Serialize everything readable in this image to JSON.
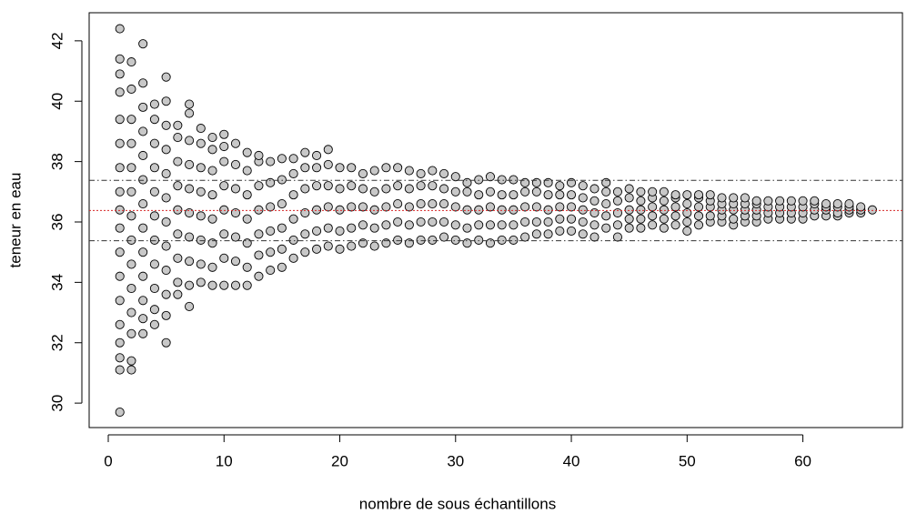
{
  "chart_data": {
    "type": "scatter",
    "x_label": "nombre de sous échantillons",
    "y_label": "teneur en eau",
    "xlim": [
      -1.65,
      68.6
    ],
    "ylim": [
      29.19,
      42.93
    ],
    "xticks": [
      0,
      10,
      20,
      30,
      40,
      50,
      60
    ],
    "yticks": [
      30,
      32,
      34,
      36,
      38,
      40,
      42
    ],
    "grid": false,
    "point_color": "#c8c8c8",
    "reference_lines": [
      {
        "value": 36.38,
        "color": "#d62728",
        "style": "dotted"
      },
      {
        "value": 37.38,
        "color": "#333333",
        "style": "dashdot"
      },
      {
        "value": 35.38,
        "color": "#333333",
        "style": "dashdot"
      }
    ],
    "groups": [
      {
        "x": 1,
        "values": [
          29.7,
          31.1,
          31.5,
          32.0,
          32.6,
          33.4,
          34.2,
          35.0,
          35.8,
          36.4,
          37.0,
          37.8,
          38.6,
          39.4,
          40.3,
          40.9,
          41.4,
          42.4
        ]
      },
      {
        "x": 2,
        "values": [
          31.1,
          31.4,
          32.3,
          33.0,
          33.8,
          34.6,
          35.4,
          36.2,
          37.0,
          37.8,
          38.6,
          39.4,
          40.4,
          41.3
        ]
      },
      {
        "x": 3,
        "values": [
          32.3,
          32.8,
          33.4,
          34.2,
          35.0,
          35.8,
          36.6,
          37.4,
          38.2,
          39.0,
          39.8,
          40.6,
          41.9
        ]
      },
      {
        "x": 4,
        "values": [
          32.6,
          33.1,
          33.8,
          34.6,
          35.4,
          36.2,
          37.0,
          37.8,
          38.6,
          39.4,
          39.9
        ]
      },
      {
        "x": 5,
        "values": [
          32.0,
          32.9,
          33.6,
          34.4,
          35.2,
          36.0,
          36.8,
          37.6,
          38.4,
          39.2,
          40.0,
          40.8
        ]
      },
      {
        "x": 6,
        "values": [
          33.6,
          34.0,
          34.8,
          35.6,
          36.4,
          37.2,
          38.0,
          38.8,
          39.2
        ]
      },
      {
        "x": 7,
        "values": [
          33.2,
          33.9,
          34.7,
          35.5,
          36.3,
          37.1,
          37.9,
          38.7,
          39.6,
          39.9
        ]
      },
      {
        "x": 8,
        "values": [
          34.0,
          34.6,
          35.4,
          36.2,
          37.0,
          37.8,
          38.6,
          39.1
        ]
      },
      {
        "x": 9,
        "values": [
          33.9,
          34.5,
          35.3,
          36.1,
          36.9,
          37.7,
          38.4,
          38.8
        ]
      },
      {
        "x": 10,
        "values": [
          33.9,
          34.8,
          35.6,
          36.4,
          37.2,
          38.0,
          38.5,
          38.9
        ]
      },
      {
        "x": 11,
        "values": [
          33.9,
          34.7,
          35.5,
          36.3,
          37.1,
          37.9,
          38.6
        ]
      },
      {
        "x": 12,
        "values": [
          33.9,
          34.5,
          35.3,
          36.1,
          36.9,
          37.7,
          38.3
        ]
      },
      {
        "x": 13,
        "values": [
          34.2,
          34.9,
          35.6,
          36.4,
          37.2,
          38.0,
          38.2
        ]
      },
      {
        "x": 14,
        "values": [
          34.4,
          35.0,
          35.7,
          36.5,
          37.3,
          38.0
        ]
      },
      {
        "x": 15,
        "values": [
          34.5,
          35.1,
          35.8,
          36.6,
          37.4,
          38.1
        ]
      },
      {
        "x": 16,
        "values": [
          34.8,
          35.4,
          36.1,
          36.9,
          37.6,
          38.1
        ]
      },
      {
        "x": 17,
        "values": [
          35.0,
          35.6,
          36.3,
          37.1,
          37.8,
          38.3
        ]
      },
      {
        "x": 18,
        "values": [
          35.1,
          35.7,
          36.4,
          37.2,
          37.8,
          38.2
        ]
      },
      {
        "x": 19,
        "values": [
          35.2,
          35.8,
          36.5,
          37.2,
          37.9,
          38.4
        ]
      },
      {
        "x": 20,
        "values": [
          35.1,
          35.7,
          36.4,
          37.1,
          37.8
        ]
      },
      {
        "x": 21,
        "values": [
          35.2,
          35.8,
          36.5,
          37.2,
          37.8
        ]
      },
      {
        "x": 22,
        "values": [
          35.3,
          35.9,
          36.5,
          37.1,
          37.6
        ]
      },
      {
        "x": 23,
        "values": [
          35.2,
          35.8,
          36.4,
          37.0,
          37.7
        ]
      },
      {
        "x": 24,
        "values": [
          35.3,
          35.9,
          36.5,
          37.1,
          37.8
        ]
      },
      {
        "x": 25,
        "values": [
          35.4,
          36.0,
          36.6,
          37.2,
          37.8
        ]
      },
      {
        "x": 26,
        "values": [
          35.3,
          35.9,
          36.5,
          37.1,
          37.7
        ]
      },
      {
        "x": 27,
        "values": [
          35.4,
          36.0,
          36.6,
          37.2,
          37.6
        ]
      },
      {
        "x": 28,
        "values": [
          35.4,
          36.0,
          36.6,
          37.2,
          37.7
        ]
      },
      {
        "x": 29,
        "values": [
          35.5,
          36.0,
          36.6,
          37.1,
          37.6
        ]
      },
      {
        "x": 30,
        "values": [
          35.4,
          35.9,
          36.5,
          37.0,
          37.5
        ]
      },
      {
        "x": 31,
        "values": [
          35.3,
          35.8,
          36.4,
          37.0,
          37.3
        ]
      },
      {
        "x": 32,
        "values": [
          35.4,
          35.9,
          36.4,
          36.9,
          37.4
        ]
      },
      {
        "x": 33,
        "values": [
          35.3,
          35.9,
          36.5,
          37.0,
          37.5
        ]
      },
      {
        "x": 34,
        "values": [
          35.4,
          35.9,
          36.4,
          36.9,
          37.4
        ]
      },
      {
        "x": 35,
        "values": [
          35.4,
          35.9,
          36.4,
          36.9,
          37.4
        ]
      },
      {
        "x": 36,
        "values": [
          35.5,
          36.0,
          36.5,
          37.0,
          37.3
        ]
      },
      {
        "x": 37,
        "values": [
          35.6,
          36.0,
          36.5,
          37.0,
          37.3
        ]
      },
      {
        "x": 38,
        "values": [
          35.6,
          36.0,
          36.4,
          36.9,
          37.3
        ]
      },
      {
        "x": 39,
        "values": [
          35.7,
          36.1,
          36.5,
          36.9,
          37.2
        ]
      },
      {
        "x": 40,
        "values": [
          35.7,
          36.1,
          36.5,
          36.9,
          37.3
        ]
      },
      {
        "x": 41,
        "values": [
          35.6,
          36.0,
          36.4,
          36.8,
          37.2
        ]
      },
      {
        "x": 42,
        "values": [
          35.5,
          35.9,
          36.3,
          36.7,
          37.1
        ]
      },
      {
        "x": 43,
        "values": [
          35.8,
          36.2,
          36.6,
          37.0,
          37.3
        ]
      },
      {
        "x": 44,
        "values": [
          35.5,
          35.9,
          36.3,
          36.7,
          37.0
        ]
      },
      {
        "x": 45,
        "values": [
          35.8,
          36.1,
          36.4,
          36.8,
          37.1
        ]
      },
      {
        "x": 46,
        "values": [
          35.8,
          36.1,
          36.4,
          36.7,
          37.0
        ]
      },
      {
        "x": 47,
        "values": [
          35.9,
          36.2,
          36.5,
          36.8,
          37.0
        ]
      },
      {
        "x": 48,
        "values": [
          35.8,
          36.1,
          36.4,
          36.7,
          37.0
        ]
      },
      {
        "x": 49,
        "values": [
          35.9,
          36.2,
          36.5,
          36.8,
          36.9
        ]
      },
      {
        "x": 50,
        "values": [
          35.7,
          36.0,
          36.3,
          36.6,
          36.9
        ]
      },
      {
        "x": 51,
        "values": [
          35.9,
          36.2,
          36.5,
          36.8,
          36.9
        ]
      },
      {
        "x": 52,
        "values": [
          36.0,
          36.2,
          36.5,
          36.7,
          36.9
        ]
      },
      {
        "x": 53,
        "values": [
          36.0,
          36.2,
          36.4,
          36.6,
          36.8
        ]
      },
      {
        "x": 54,
        "values": [
          35.9,
          36.1,
          36.4,
          36.6,
          36.8
        ]
      },
      {
        "x": 55,
        "values": [
          36.0,
          36.2,
          36.4,
          36.6,
          36.8
        ]
      },
      {
        "x": 56,
        "values": [
          36.0,
          36.2,
          36.4,
          36.6,
          36.7
        ]
      },
      {
        "x": 57,
        "values": [
          36.1,
          36.3,
          36.5,
          36.7
        ]
      },
      {
        "x": 58,
        "values": [
          36.1,
          36.3,
          36.5,
          36.7
        ]
      },
      {
        "x": 59,
        "values": [
          36.1,
          36.3,
          36.5,
          36.7
        ]
      },
      {
        "x": 60,
        "values": [
          36.1,
          36.3,
          36.5,
          36.7
        ]
      },
      {
        "x": 61,
        "values": [
          36.2,
          36.4,
          36.6,
          36.7
        ]
      },
      {
        "x": 62,
        "values": [
          36.2,
          36.4,
          36.5,
          36.6
        ]
      },
      {
        "x": 63,
        "values": [
          36.2,
          36.3,
          36.5,
          36.6
        ]
      },
      {
        "x": 64,
        "values": [
          36.3,
          36.4,
          36.5,
          36.6
        ]
      },
      {
        "x": 65,
        "values": [
          36.3,
          36.4,
          36.5
        ]
      },
      {
        "x": 66,
        "values": [
          36.4
        ]
      }
    ]
  }
}
